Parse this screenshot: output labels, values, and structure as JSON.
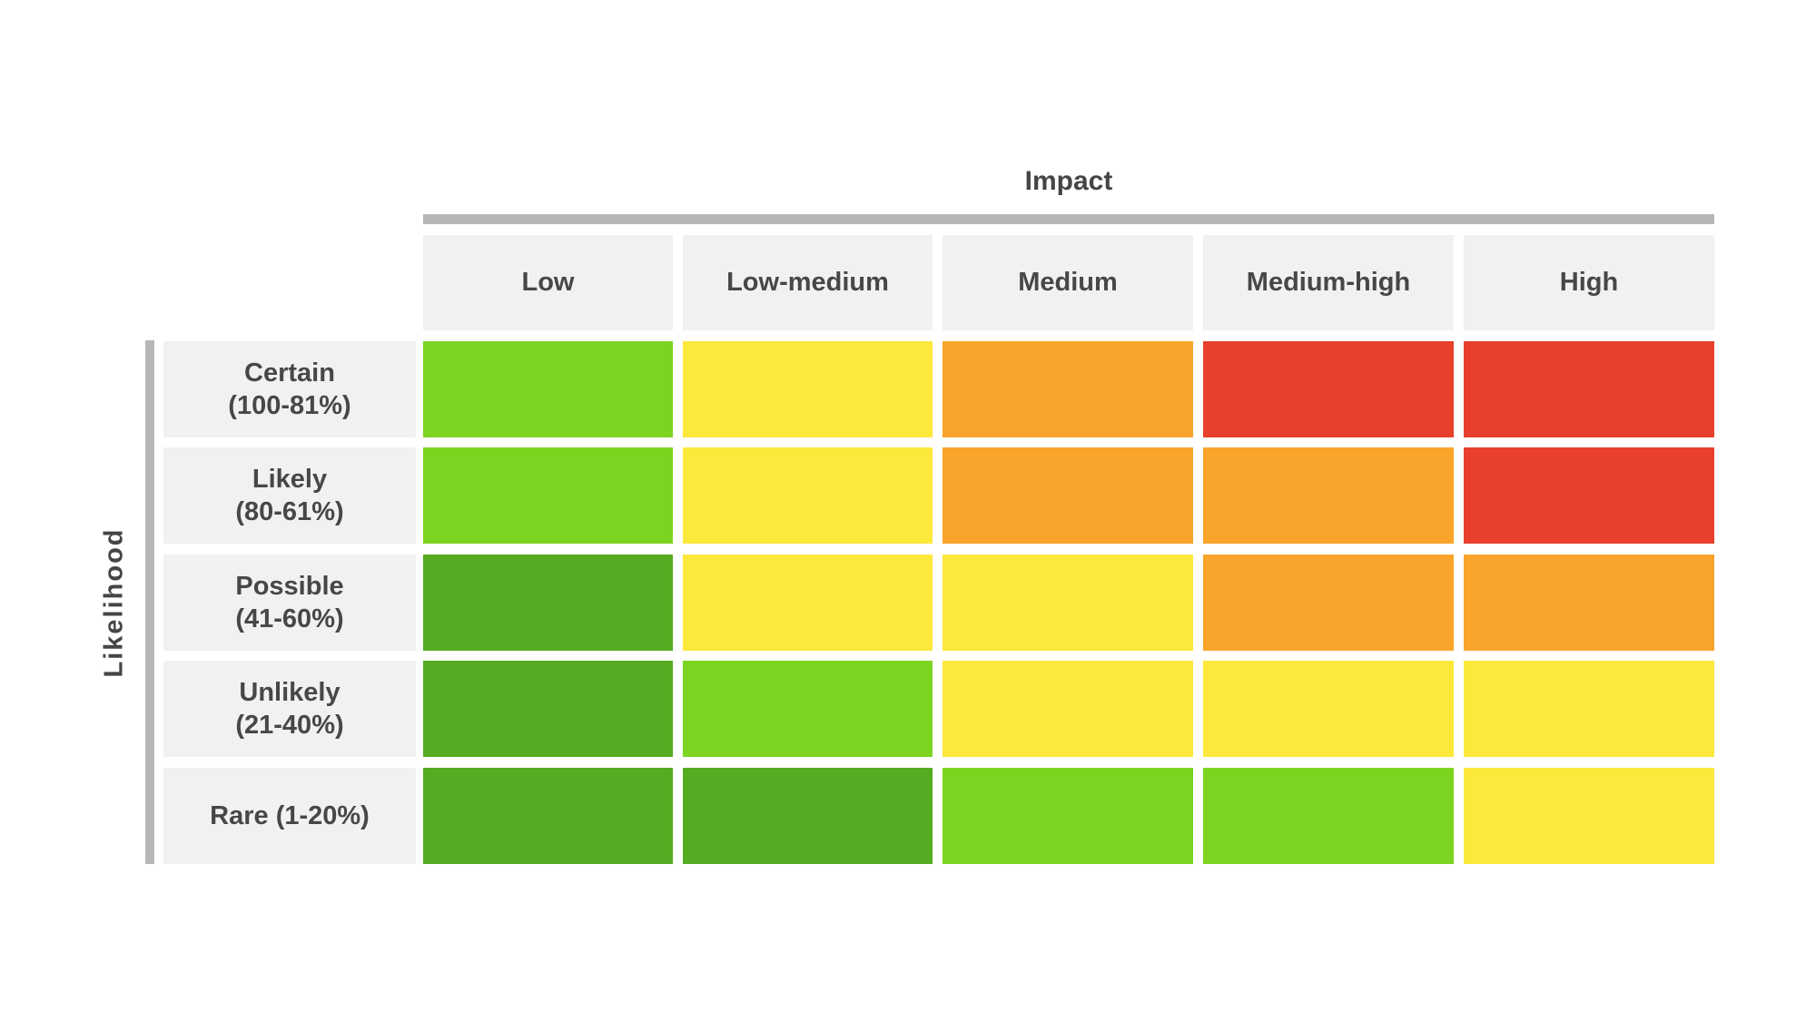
{
  "axes": {
    "x_title": "Impact",
    "y_title": "Likelihood"
  },
  "columns": [
    "Low",
    "Low-medium",
    "Medium",
    "Medium-high",
    "High"
  ],
  "rows": [
    {
      "label": "Certain",
      "range": "(100-81%)",
      "cells": [
        "light-green",
        "yellow",
        "orange",
        "red",
        "red"
      ]
    },
    {
      "label": "Likely",
      "range": "(80-61%)",
      "cells": [
        "light-green",
        "yellow",
        "orange",
        "orange",
        "red"
      ]
    },
    {
      "label": "Possible",
      "range": "(41-60%)",
      "cells": [
        "dark-green",
        "yellow",
        "yellow",
        "orange",
        "orange"
      ]
    },
    {
      "label": "Unlikely",
      "range": "(21-40%)",
      "cells": [
        "dark-green",
        "light-green",
        "yellow",
        "yellow",
        "yellow"
      ]
    },
    {
      "label": "Rare (1-20%)",
      "range": "",
      "cells": [
        "dark-green",
        "dark-green",
        "light-green",
        "light-green",
        "yellow"
      ]
    }
  ],
  "colors": {
    "light-green": "#7CD420",
    "dark-green": "#55AB21",
    "yellow": "#FDE83C",
    "orange": "#F9A42A",
    "red": "#E8402C",
    "header_bg": "#F1F1F1",
    "axis_bar": "#B7B7B7",
    "text": "#474747"
  },
  "chart_data": {
    "type": "heatmap",
    "title": "",
    "xlabel": "Impact",
    "ylabel": "Likelihood",
    "x_categories": [
      "Low",
      "Low-medium",
      "Medium",
      "Medium-high",
      "High"
    ],
    "y_categories": [
      "Certain (100-81%)",
      "Likely (80-61%)",
      "Possible (41-60%)",
      "Unlikely (21-40%)",
      "Rare (1-20%)"
    ],
    "values": [
      [
        "light-green",
        "yellow",
        "orange",
        "red",
        "red"
      ],
      [
        "light-green",
        "yellow",
        "orange",
        "orange",
        "red"
      ],
      [
        "dark-green",
        "yellow",
        "yellow",
        "orange",
        "orange"
      ],
      [
        "dark-green",
        "light-green",
        "yellow",
        "yellow",
        "yellow"
      ],
      [
        "dark-green",
        "dark-green",
        "light-green",
        "light-green",
        "yellow"
      ]
    ],
    "value_scale": {
      "dark-green": 1,
      "light-green": 2,
      "yellow": 3,
      "orange": 4,
      "red": 5
    },
    "legend": "none",
    "grid": "white gaps between cells"
  }
}
